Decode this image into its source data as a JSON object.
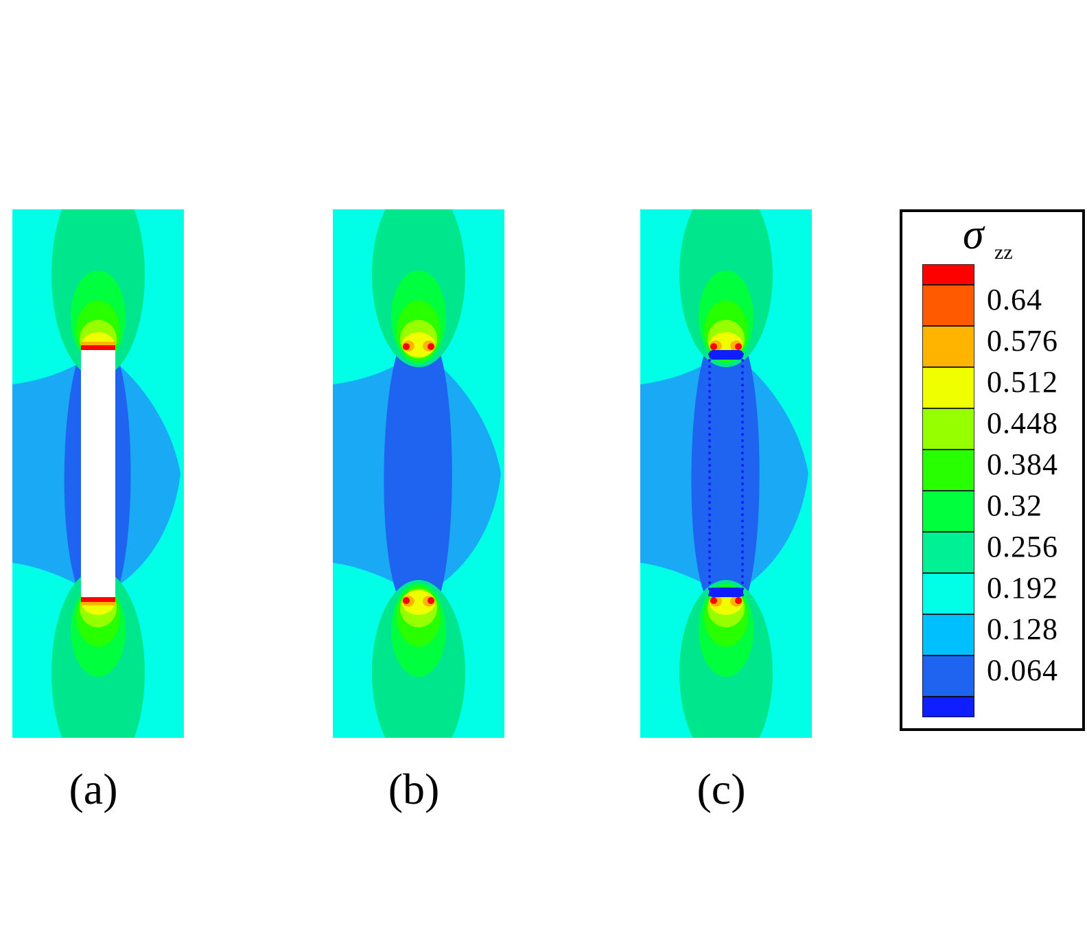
{
  "figure": {
    "panels": [
      {
        "id": "a",
        "label": "(a)",
        "center": "void"
      },
      {
        "id": "b",
        "label": "(b)",
        "center": "filled"
      },
      {
        "id": "c",
        "label": "(c)",
        "center": "dotted"
      }
    ]
  },
  "legend": {
    "symbol": "σ",
    "subscript": "zz",
    "levels": [
      "0.64",
      "0.576",
      "0.512",
      "0.448",
      "0.384",
      "0.32",
      "0.256",
      "0.192",
      "0.128",
      "0.064"
    ],
    "colors": [
      "#ff0000",
      "#ff5a00",
      "#ffb400",
      "#f0ff00",
      "#96ff00",
      "#28ff00",
      "#00ff3c",
      "#00f096",
      "#00ffe6",
      "#00bfff",
      "#1e64f0",
      "#0f1eff"
    ]
  },
  "colors": {
    "background": "#00ffe6",
    "outer_blue": "#1aaaf5",
    "inner_blue": "#1e64f0",
    "deep_blue": "#0f1eff",
    "green_light": "#00e68c",
    "green_mid": "#00ff3c",
    "green_bright": "#28ff00",
    "yellow_green": "#96ff00",
    "yellow": "#f0ff00",
    "orange": "#ffb400",
    "red": "#ff0000"
  }
}
